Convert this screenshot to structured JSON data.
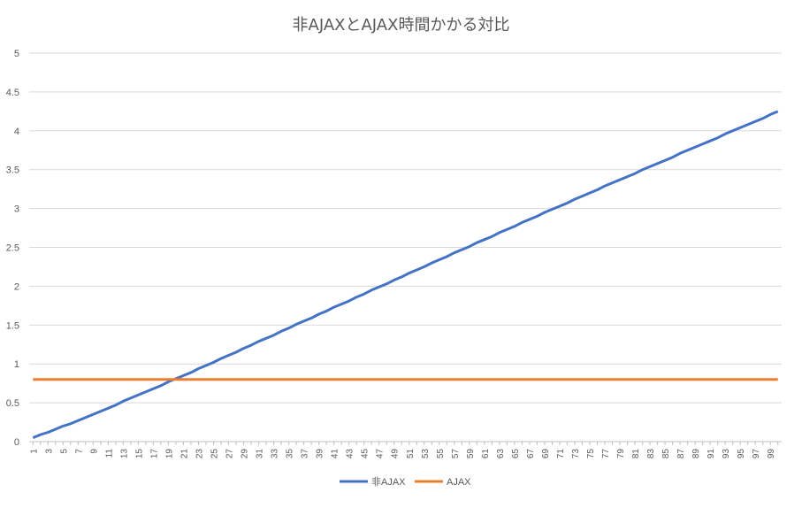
{
  "chart_data": {
    "type": "line",
    "title": "非AJAXとAJAX時間かかる対比",
    "xlabel": "",
    "ylabel": "",
    "x_start": 1,
    "x_end": 100,
    "x_tick_labels_shown": "odd numbers 1–99",
    "ylim": [
      0,
      5
    ],
    "yticks": [
      0,
      0.5,
      1,
      1.5,
      2,
      2.5,
      3,
      3.5,
      4,
      4.5,
      5
    ],
    "grid": true,
    "legend_position": "bottom",
    "series": [
      {
        "name": "非AJAX",
        "color": "#4472C4",
        "note": "approximately linear",
        "values": [
          0.05,
          0.09,
          0.12,
          0.16,
          0.2,
          0.23,
          0.27,
          0.31,
          0.35,
          0.39,
          0.43,
          0.47,
          0.52,
          0.56,
          0.6,
          0.64,
          0.68,
          0.72,
          0.77,
          0.81,
          0.85,
          0.89,
          0.94,
          0.98,
          1.02,
          1.07,
          1.11,
          1.15,
          1.2,
          1.24,
          1.29,
          1.33,
          1.37,
          1.42,
          1.46,
          1.51,
          1.55,
          1.59,
          1.64,
          1.68,
          1.73,
          1.77,
          1.81,
          1.86,
          1.9,
          1.95,
          1.99,
          2.03,
          2.08,
          2.12,
          2.17,
          2.21,
          2.25,
          2.3,
          2.34,
          2.38,
          2.43,
          2.47,
          2.51,
          2.56,
          2.6,
          2.64,
          2.69,
          2.73,
          2.77,
          2.82,
          2.86,
          2.9,
          2.95,
          2.99,
          3.03,
          3.07,
          3.12,
          3.16,
          3.2,
          3.24,
          3.29,
          3.33,
          3.37,
          3.41,
          3.45,
          3.5,
          3.54,
          3.58,
          3.62,
          3.66,
          3.71,
          3.75,
          3.79,
          3.83,
          3.87,
          3.91,
          3.96,
          4,
          4.04,
          4.08,
          4.12,
          4.16,
          4.21,
          4.25
        ]
      },
      {
        "name": "AJAX",
        "color": "#ED7D31",
        "note": "constant",
        "constant_value": 0.8
      }
    ]
  }
}
